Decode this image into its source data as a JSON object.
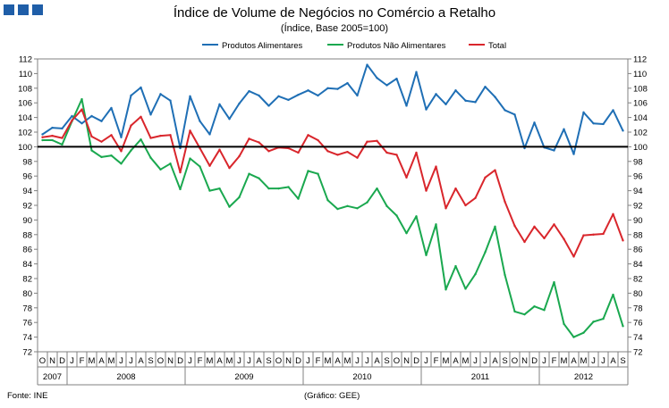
{
  "logo": {
    "color": "#1f5ea8",
    "blocks": 3
  },
  "chart_data": {
    "type": "line",
    "title": "Índice de Volume de Negócios no Comércio a Retalho",
    "subtitle": "(Índice, Base 2005=100)",
    "source": "Fonte: INE",
    "credit": "(Gráfico: GEE)",
    "ylim": [
      72,
      112
    ],
    "y_ticks": [
      72,
      74,
      76,
      78,
      80,
      82,
      84,
      86,
      88,
      90,
      92,
      94,
      96,
      98,
      100,
      102,
      104,
      106,
      108,
      110,
      112
    ],
    "reference_line": 100,
    "month_labels": [
      "O",
      "N",
      "D",
      "J",
      "F",
      "M",
      "A",
      "M",
      "J",
      "J",
      "A",
      "S",
      "O",
      "N",
      "D",
      "J",
      "F",
      "M",
      "A",
      "M",
      "J",
      "J",
      "A",
      "S",
      "O",
      "N",
      "D",
      "J",
      "F",
      "M",
      "A",
      "M",
      "J",
      "J",
      "A",
      "S",
      "O",
      "N",
      "D",
      "J",
      "F",
      "M",
      "A",
      "M",
      "J",
      "J",
      "A",
      "S",
      "O",
      "N",
      "D",
      "J",
      "F",
      "M",
      "A",
      "M",
      "J",
      "J",
      "A",
      "S"
    ],
    "year_labels": [
      {
        "label": "2007",
        "start": 0,
        "end": 2
      },
      {
        "label": "2008",
        "start": 3,
        "end": 14
      },
      {
        "label": "2009",
        "start": 15,
        "end": 26
      },
      {
        "label": "2010",
        "start": 27,
        "end": 38
      },
      {
        "label": "2011",
        "start": 39,
        "end": 50
      },
      {
        "label": "2012",
        "start": 51,
        "end": 59
      }
    ],
    "series": [
      {
        "name": "Produtos Alimentares",
        "color": "#1f6fb5",
        "values": [
          101.7,
          102.6,
          102.5,
          104.2,
          103.2,
          104.2,
          103.5,
          105.3,
          101.3,
          107.0,
          108.1,
          104.4,
          107.2,
          106.3,
          99.8,
          106.9,
          103.5,
          101.7,
          105.8,
          103.8,
          105.9,
          107.6,
          107.0,
          105.6,
          106.9,
          106.4,
          107.1,
          107.7,
          107.0,
          108.0,
          107.9,
          108.7,
          107.0,
          111.2,
          109.4,
          108.4,
          109.3,
          105.6,
          110.2,
          105.1,
          107.2,
          105.8,
          107.7,
          106.3,
          106.1,
          108.2,
          106.8,
          105.0,
          104.4,
          99.8,
          103.3,
          99.9,
          99.5,
          102.4,
          99.0,
          104.7,
          103.2,
          103.1,
          105.0,
          102.2
        ]
      },
      {
        "name": "Produtos Não Alimentares",
        "color": "#1aa84f",
        "values": [
          100.9,
          100.9,
          100.3,
          103.5,
          106.5,
          99.5,
          98.6,
          98.8,
          97.7,
          99.5,
          101.0,
          98.5,
          96.9,
          97.7,
          94.2,
          98.4,
          97.3,
          94.0,
          94.3,
          91.8,
          93.1,
          96.3,
          95.7,
          94.3,
          94.3,
          94.5,
          92.9,
          96.7,
          96.3,
          92.7,
          91.5,
          91.9,
          91.6,
          92.4,
          94.3,
          91.9,
          90.6,
          88.2,
          90.5,
          85.2,
          89.4,
          80.5,
          83.7,
          80.6,
          82.6,
          85.6,
          89.1,
          82.5,
          77.5,
          77.1,
          78.2,
          77.7,
          81.5,
          75.8,
          74.0,
          74.6,
          76.1,
          76.5,
          79.8,
          75.5
        ]
      },
      {
        "name": "Total",
        "color": "#d9262c",
        "values": [
          101.3,
          101.5,
          101.2,
          103.6,
          105.1,
          101.4,
          100.7,
          101.6,
          99.4,
          102.9,
          104.1,
          101.2,
          101.5,
          101.6,
          96.5,
          102.2,
          99.8,
          97.4,
          99.6,
          97.1,
          98.7,
          101.1,
          100.6,
          99.4,
          99.9,
          99.8,
          99.2,
          101.6,
          100.9,
          99.4,
          98.9,
          99.3,
          98.5,
          100.7,
          100.8,
          99.2,
          98.9,
          95.8,
          99.2,
          94.0,
          97.3,
          91.6,
          94.3,
          92.0,
          93.0,
          95.8,
          96.8,
          92.5,
          89.2,
          87.0,
          89.1,
          87.5,
          89.4,
          87.4,
          85.0,
          87.9,
          88.0,
          88.1,
          90.8,
          87.2
        ]
      }
    ]
  }
}
